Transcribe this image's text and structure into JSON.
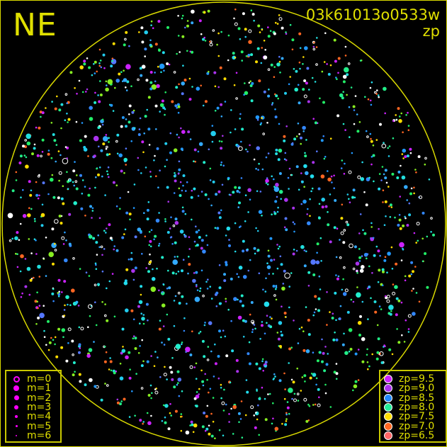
{
  "corner_label": "NE",
  "image_id": "03k61013o0533w",
  "mode_label": "zp",
  "colors": {
    "frame": "#d8d800",
    "text": "#e0e000",
    "background": "#000000"
  },
  "magnitude_legend": [
    {
      "label": "m=0",
      "marker": "hollow-circle"
    },
    {
      "label": "m=1",
      "marker": "filled-circle"
    },
    {
      "label": "m=2",
      "marker": "filled-circle"
    },
    {
      "label": "m=3",
      "marker": "filled-circle"
    },
    {
      "label": "m=4",
      "marker": "filled-circle"
    },
    {
      "label": "m=5",
      "marker": "filled-circle"
    },
    {
      "label": "m=6",
      "marker": "filled-circle"
    }
  ],
  "magnitude_marker_color": "#ff00ff",
  "zp_legend": [
    {
      "label": "zp=9.5",
      "color": "#cc22ff"
    },
    {
      "label": "zp=9.0",
      "color": "#aa33ee"
    },
    {
      "label": "zp=8.5",
      "color": "#2288ff"
    },
    {
      "label": "zp=8.0",
      "color": "#22ee99"
    },
    {
      "label": "zp=7.5",
      "color": "#ffdd00"
    },
    {
      "label": "zp=7.0",
      "color": "#ff6622"
    },
    {
      "label": "zp=6.5",
      "color": "#ff6666"
    }
  ]
}
